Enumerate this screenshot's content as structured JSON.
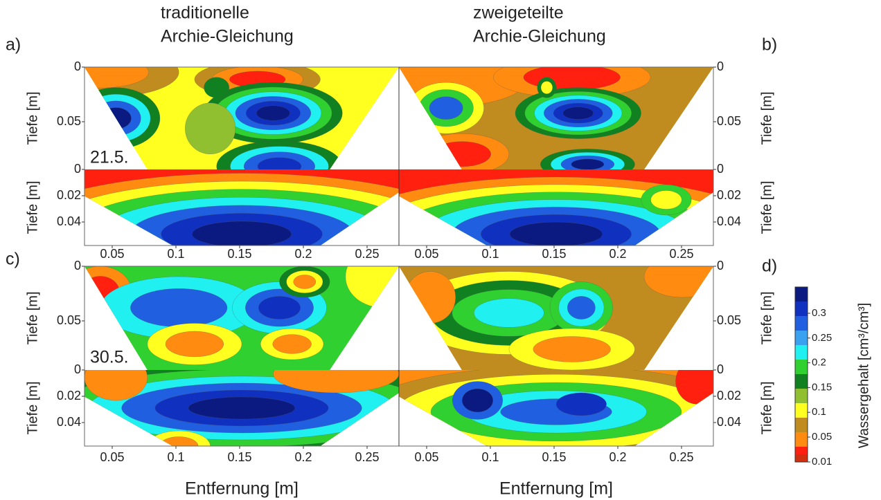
{
  "panel_labels": [
    "a)",
    "b)",
    "c)",
    "d)"
  ],
  "columns": [
    {
      "line1": "traditionelle",
      "line2": "Archie-Gleichung"
    },
    {
      "line1": "zweigeteilte",
      "line2": "Archie-Gleichung"
    }
  ],
  "dates": [
    "21.5.",
    "30.5."
  ],
  "axes": {
    "y_label": "Tiefe [m]",
    "x_label": "Entfernung [m]",
    "x_ticks": [
      0.05,
      0.1,
      0.15,
      0.2,
      0.25
    ],
    "upper_y_ticks": [
      0,
      0.05
    ],
    "lower_y_ticks": [
      0,
      0.02,
      0.04
    ]
  },
  "colorbar": {
    "label": "Wassergehalt [cm³/cm³]",
    "ticks": [
      0.3,
      0.25,
      0.2,
      0.15,
      0.1,
      0.05,
      0.01
    ]
  }
}
